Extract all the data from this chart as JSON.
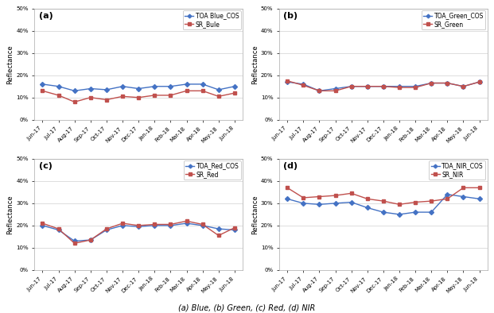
{
  "x_labels": [
    "Jun-17",
    "Jul-17",
    "Aug-17",
    "Sep-17",
    "Oct-17",
    "Nov-17",
    "Dec-17",
    "Jan-18",
    "Feb-18",
    "Mar-18",
    "Apr-18",
    "May-18",
    "Jun-18"
  ],
  "blue_toa": [
    16,
    15,
    13,
    14,
    13.5,
    15,
    14,
    15,
    15,
    16,
    16,
    13.5,
    15
  ],
  "blue_sr": [
    13,
    11,
    8,
    10,
    9,
    10.5,
    10,
    11,
    11,
    13,
    13,
    10.5,
    12
  ],
  "green_toa": [
    17,
    16,
    13,
    14,
    15,
    15,
    15,
    15,
    15,
    16.5,
    16.5,
    15,
    17
  ],
  "green_sr": [
    17.5,
    15.5,
    13,
    13,
    15,
    15,
    15,
    14.5,
    14.5,
    16.5,
    16.5,
    15,
    17
  ],
  "red_toa": [
    20,
    18,
    13,
    13.5,
    18,
    20,
    19.5,
    20,
    20,
    21,
    20,
    18.5,
    18
  ],
  "red_sr": [
    21,
    18.5,
    12,
    13.5,
    18.5,
    21,
    20,
    20.5,
    20.5,
    22,
    20.5,
    15.5,
    19
  ],
  "nir_toa": [
    32,
    30,
    29.5,
    30,
    30.5,
    28,
    26,
    25,
    26,
    26,
    34,
    33,
    32
  ],
  "nir_sr": [
    37,
    32.5,
    33,
    33.5,
    34.5,
    32,
    31,
    29.5,
    30.5,
    31,
    32,
    37,
    37
  ],
  "toa_color": "#4472C4",
  "sr_color": "#C0504D",
  "toa_marker": "D",
  "sr_marker": "s",
  "ylabel": "Reflectance",
  "ylim": [
    0,
    50
  ],
  "yticks": [
    0,
    10,
    20,
    30,
    40,
    50
  ],
  "ytick_labels": [
    "0%",
    "10%",
    "20%",
    "30%",
    "40%",
    "50%"
  ],
  "subplot_labels": [
    "(a)",
    "(b)",
    "(c)",
    "(d)"
  ],
  "legend_a": [
    "TOA Blue_COS",
    "SR_Bule"
  ],
  "legend_b": [
    "TOA_Green_COS",
    "SR_Green"
  ],
  "legend_c": [
    "TOA_Red_COS",
    "SR_Red"
  ],
  "legend_d": [
    "TOA_NIR_COS",
    "SR_NIR"
  ],
  "caption": "(a) Blue, (b) Green, (c) Red, (d) NIR"
}
